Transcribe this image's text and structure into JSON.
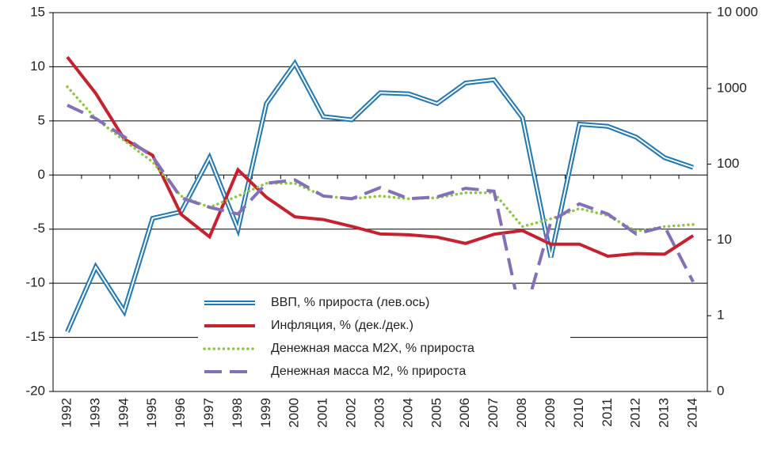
{
  "chart_data": {
    "type": "line",
    "categories": [
      "1992",
      "1993",
      "1994",
      "1995",
      "1996",
      "1997",
      "1998",
      "1999",
      "2000",
      "2001",
      "2002",
      "2003",
      "2004",
      "2005",
      "2006",
      "2007",
      "2008",
      "2009",
      "2010",
      "2011",
      "2012",
      "2013",
      "2014"
    ],
    "series": [
      {
        "name": "ВВП, % прироста (лев.ось)",
        "color": "#1f77b4",
        "style": "double",
        "axis": "y",
        "values": [
          -14.5,
          -8.5,
          -12.6,
          -4.0,
          -3.4,
          1.6,
          -5.0,
          6.6,
          10.3,
          5.4,
          5.1,
          7.6,
          7.5,
          6.6,
          8.5,
          8.8,
          5.3,
          -7.6,
          4.7,
          4.5,
          3.5,
          1.6,
          0.7
        ]
      },
      {
        "name": "Инфляция, % (дек./дек.)",
        "color": "#c8202f",
        "style": "solid",
        "axis": "y2",
        "values": [
          2600,
          860,
          215,
          131,
          21.8,
          11,
          84.5,
          36.6,
          20.2,
          18.6,
          15.1,
          12,
          11.7,
          10.9,
          9,
          11.9,
          13.3,
          8.8,
          8.8,
          6.1,
          6.6,
          6.5,
          11.4
        ]
      },
      {
        "name": "Денежная масса М2Х, % прироста",
        "color": "#8dc63f",
        "style": "dotted",
        "axis": "y2",
        "values": [
          1050,
          400,
          205,
          107,
          38,
          27,
          38,
          56,
          56,
          38,
          35,
          38,
          35,
          36,
          42,
          42,
          15,
          19,
          26,
          21,
          13,
          15,
          16
        ]
      },
      {
        "name": "Денежная масса М2, % прироста",
        "color": "#8470b8",
        "style": "dashed",
        "axis": "y2",
        "values": [
          600,
          400,
          230,
          126,
          36,
          27,
          22,
          56,
          62,
          38,
          35,
          49,
          35,
          37,
          48,
          44,
          0.8,
          17.5,
          30,
          22,
          12,
          15,
          2.8
        ]
      }
    ],
    "ylim": [
      -20,
      15
    ],
    "yticks": [
      -20,
      -15,
      -10,
      -5,
      0,
      5,
      10,
      15
    ],
    "y2lim": [
      0.1,
      10000
    ],
    "y2log": true,
    "y2ticks": [
      {
        "value": 0.1,
        "label": "0"
      },
      1,
      10,
      100,
      1000,
      {
        "value": 10000,
        "label": "10 000"
      }
    ],
    "grid": true
  }
}
